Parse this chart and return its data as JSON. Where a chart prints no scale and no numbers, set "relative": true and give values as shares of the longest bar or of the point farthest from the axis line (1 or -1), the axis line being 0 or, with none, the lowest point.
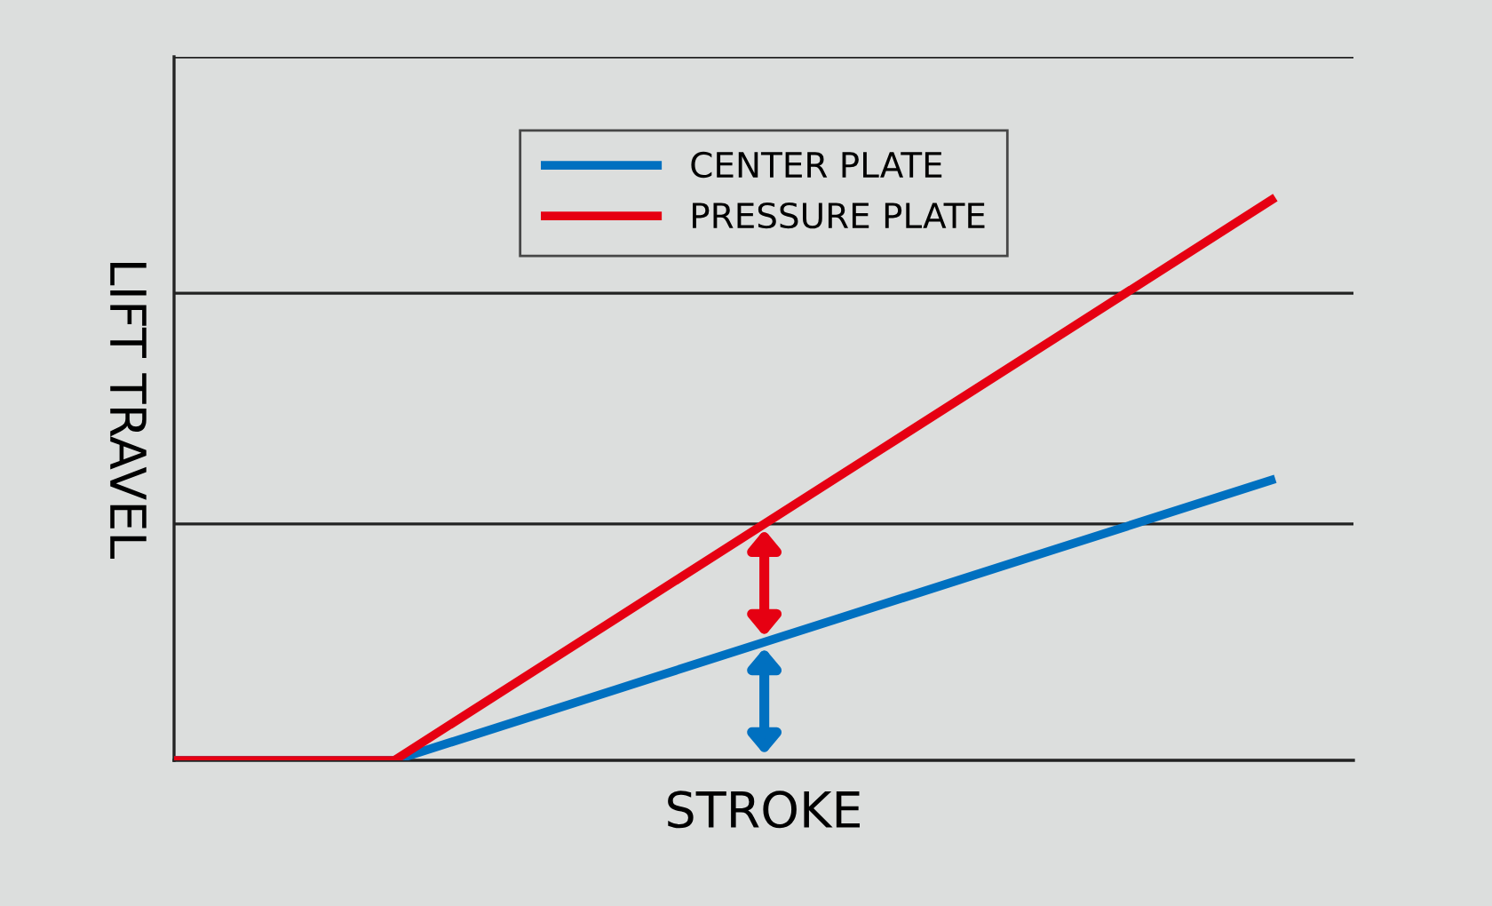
{
  "chart_data": {
    "type": "line",
    "relative": true,
    "xlabel": "STROKE",
    "ylabel": "LIFT TRAVEL",
    "categories": [
      null,
      null,
      null,
      null,
      null,
      null
    ],
    "series": [
      {
        "name": "CENTER PLATE",
        "color": "#0070c0",
        "values": [
          0,
          0,
          0.125,
          0.25,
          0.375,
          0.5
        ]
      },
      {
        "name": "PRESSURE PLATE",
        "color": "#e60012",
        "values": [
          0,
          0,
          0.25,
          0.5,
          0.75,
          1
        ]
      }
    ],
    "ref_lines": [
      {
        "axis": "y",
        "value": 0.42,
        "color": "#222222"
      },
      {
        "axis": "y",
        "value": 0.83,
        "color": "#222222"
      },
      {
        "axis": "y",
        "value": 1.25,
        "color": "#222222"
      }
    ],
    "legend": "top",
    "marker": "none",
    "line_style": "solid",
    "tick_labels": false
  }
}
